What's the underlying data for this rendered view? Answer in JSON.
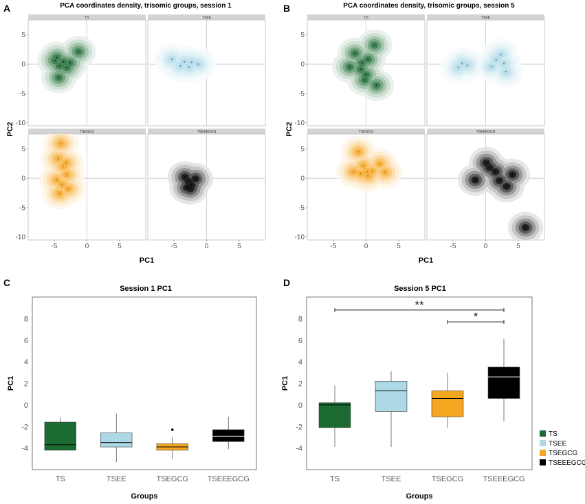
{
  "figure": {
    "panels": {
      "A": {
        "letter": "A",
        "title": "PCA coordinates density, trisomic groups, session 1"
      },
      "B": {
        "letter": "B",
        "title": "PCA coordinates density, trisomic groups, session 5"
      },
      "C": {
        "letter": "C",
        "title": "Session 1 PC1"
      },
      "D": {
        "letter": "D",
        "title": "Session 5 PC1"
      }
    },
    "legend": [
      {
        "label": "TS",
        "color": "#1b6b32"
      },
      {
        "label": "TSEE",
        "color": "#add8e6"
      },
      {
        "label": "TSEGCG",
        "color": "#f5a623"
      },
      {
        "label": "TSEEEGCG",
        "color": "#000000"
      }
    ]
  },
  "chart_data": [
    {
      "type": "density",
      "panel": "A",
      "title": "PCA coordinates density, trisomic groups, session 1",
      "xlabel": "PC1",
      "ylabel": "PC2",
      "xlim": [
        -9,
        9
      ],
      "ylim": [
        -10.5,
        7.5
      ],
      "x_ticks": [
        "-5",
        "0",
        "5"
      ],
      "y_ticks": [
        "5",
        "0",
        "-5",
        "-10"
      ],
      "facets": [
        {
          "name": "TS",
          "color": "#1b6b32",
          "points": [
            [
              -4.6,
              1.1
            ],
            [
              -4.2,
              -0.3
            ],
            [
              -3.6,
              0.4
            ],
            [
              -3.1,
              -0.6
            ],
            [
              -2.6,
              0.2
            ],
            [
              -1.3,
              2.1
            ],
            [
              -4.3,
              -2.3
            ],
            [
              -4.9,
              0.6
            ]
          ]
        },
        {
          "name": "TSEE",
          "color": "#add8e6",
          "points": [
            [
              -5.3,
              0.8
            ],
            [
              -4.0,
              -0.3
            ],
            [
              -3.4,
              0.4
            ],
            [
              -2.7,
              -0.5
            ],
            [
              -2.3,
              0.3
            ],
            [
              -1.3,
              0.0
            ]
          ]
        },
        {
          "name": "TSEGCG",
          "color": "#f5a623",
          "points": [
            [
              -4.0,
              5.9
            ],
            [
              -4.4,
              3.3
            ],
            [
              -3.6,
              2.0
            ],
            [
              -3.1,
              0.6
            ],
            [
              -3.8,
              -1.1
            ],
            [
              -4.6,
              -0.3
            ],
            [
              -2.9,
              -1.8
            ],
            [
              -4.2,
              -2.6
            ],
            [
              -3.2,
              2.6
            ]
          ]
        },
        {
          "name": "TSEEEGCG",
          "color": "#000000",
          "points": [
            [
              -3.3,
              0.2
            ],
            [
              -2.8,
              -0.5
            ],
            [
              -2.3,
              -1.2
            ],
            [
              -1.7,
              -0.1
            ],
            [
              -2.5,
              -1.8
            ],
            [
              -3.0,
              -1.6
            ]
          ]
        }
      ]
    },
    {
      "type": "density",
      "panel": "B",
      "title": "PCA coordinates density, trisomic groups, session 5",
      "xlabel": "PC1",
      "ylabel": "PC2",
      "xlim": [
        -9,
        9
      ],
      "ylim": [
        -10.5,
        7.5
      ],
      "x_ticks": [
        "-5",
        "0",
        "5"
      ],
      "y_ticks": [
        "5",
        "0",
        "-5",
        "-10"
      ],
      "facets": [
        {
          "name": "TS",
          "color": "#1b6b32",
          "points": [
            [
              -1.7,
              1.8
            ],
            [
              -2.5,
              -0.5
            ],
            [
              -0.6,
              0.2
            ],
            [
              0.0,
              -1.8
            ],
            [
              0.3,
              0.8
            ],
            [
              1.3,
              3.2
            ],
            [
              1.6,
              -3.6
            ],
            [
              -0.2,
              -2.7
            ],
            [
              -0.8,
              -0.9
            ]
          ]
        },
        {
          "name": "TSEE",
          "color": "#add8e6",
          "points": [
            [
              -4.2,
              -0.6
            ],
            [
              -3.6,
              0.1
            ],
            [
              -2.8,
              -0.2
            ],
            [
              0.9,
              -0.4
            ],
            [
              1.6,
              0.7
            ],
            [
              2.8,
              0.1
            ],
            [
              3.1,
              -1.3
            ],
            [
              2.3,
              1.6
            ]
          ]
        },
        {
          "name": "TSEGCG",
          "color": "#f5a623",
          "points": [
            [
              -1.2,
              4.5
            ],
            [
              -1.9,
              1.1
            ],
            [
              -0.4,
              2.1
            ],
            [
              0.3,
              0.4
            ],
            [
              0.9,
              1.2
            ],
            [
              2.1,
              2.4
            ],
            [
              2.9,
              1.0
            ],
            [
              -0.8,
              0.8
            ],
            [
              0.2,
              1.1
            ]
          ]
        },
        {
          "name": "TSEEEGCG",
          "color": "#000000",
          "points": [
            [
              -1.6,
              -0.3
            ],
            [
              0.1,
              2.6
            ],
            [
              0.6,
              1.8
            ],
            [
              1.5,
              1.1
            ],
            [
              2.1,
              -0.4
            ],
            [
              3.2,
              -1.4
            ],
            [
              4.1,
              0.6
            ],
            [
              6.1,
              -8.4
            ]
          ]
        }
      ]
    },
    {
      "type": "box",
      "panel": "C",
      "title": "Session 1 PC1",
      "xlabel": "Groups",
      "ylabel": "PC1",
      "ylim": [
        -6,
        10
      ],
      "y_ticks": [
        "8",
        "6",
        "4",
        "2",
        "0",
        "-2",
        "-4"
      ],
      "categories": [
        "TS",
        "TSEE",
        "TSEGCG",
        "TSEEEGCG"
      ],
      "boxes": [
        {
          "group": "TS",
          "color": "#1b6b32",
          "median_color": "#000000",
          "whisker_low": -4.2,
          "q1": -4.2,
          "median": -3.7,
          "q3": -1.6,
          "whisker_high": -1.1,
          "outliers": []
        },
        {
          "group": "TSEE",
          "color": "#add8e6",
          "median_color": "#000000",
          "whisker_low": -5.3,
          "q1": -3.9,
          "median": -3.5,
          "q3": -2.6,
          "whisker_high": -0.8,
          "outliers": []
        },
        {
          "group": "TSEGCG",
          "color": "#f5a623",
          "median_color": "#000000",
          "whisker_low": -5.0,
          "q1": -4.2,
          "median": -3.9,
          "q3": -3.6,
          "whisker_high": -3.0,
          "outliers": [
            -2.3
          ]
        },
        {
          "group": "TSEEEGCG",
          "color": "#000000",
          "median_color": "#ffffff",
          "whisker_low": -4.1,
          "q1": -3.4,
          "median": -2.9,
          "q3": -2.3,
          "whisker_high": -1.1,
          "outliers": []
        }
      ],
      "significance": []
    },
    {
      "type": "box",
      "panel": "D",
      "title": "Session 5 PC1",
      "xlabel": "Groups",
      "ylabel": "PC1",
      "ylim": [
        -6,
        10
      ],
      "y_ticks": [
        "8",
        "6",
        "4",
        "2",
        "0",
        "-2",
        "-4"
      ],
      "categories": [
        "TS",
        "TSEE",
        "TSEGCG",
        "TSEEEGCG"
      ],
      "boxes": [
        {
          "group": "TS",
          "color": "#1b6b32",
          "median_color": "#000000",
          "whisker_low": -3.9,
          "q1": -2.1,
          "median": 0.0,
          "q3": 0.2,
          "whisker_high": 1.8,
          "outliers": []
        },
        {
          "group": "TSEE",
          "color": "#add8e6",
          "median_color": "#000000",
          "whisker_low": -3.9,
          "q1": -0.6,
          "median": 1.3,
          "q3": 2.2,
          "whisker_high": 3.1,
          "outliers": []
        },
        {
          "group": "TSEGCG",
          "color": "#f5a623",
          "median_color": "#000000",
          "whisker_low": -2.1,
          "q1": -1.1,
          "median": 0.6,
          "q3": 1.3,
          "whisker_high": 3.0,
          "outliers": []
        },
        {
          "group": "TSEEEGCG",
          "color": "#000000",
          "median_color": "#ffffff",
          "whisker_low": -1.5,
          "q1": 0.6,
          "median": 2.6,
          "q3": 3.5,
          "whisker_high": 6.1,
          "outliers": []
        }
      ],
      "significance": [
        {
          "from": "TS",
          "to": "TSEEEGCG",
          "label": "**",
          "y": 8.8
        },
        {
          "from": "TSEGCG",
          "to": "TSEEEGCG",
          "label": "*",
          "y": 7.7
        }
      ]
    }
  ]
}
